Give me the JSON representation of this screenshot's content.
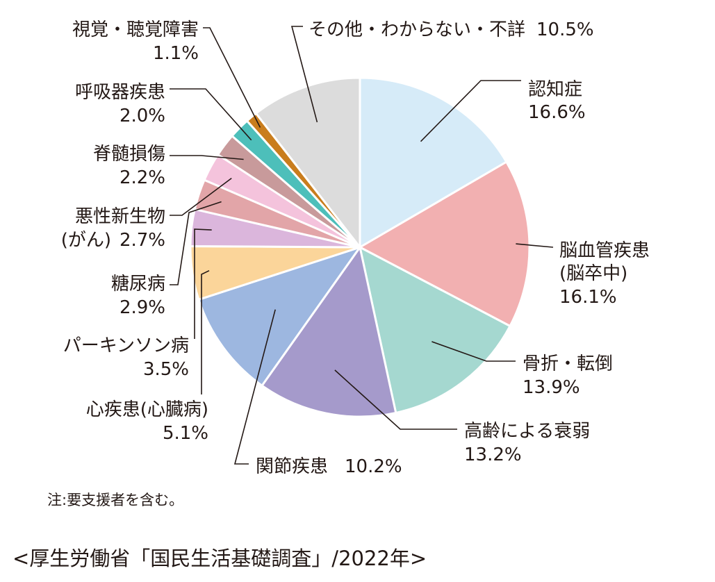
{
  "chart_data": {
    "type": "pie",
    "slices": [
      {
        "label": "認知症",
        "value": 16.6,
        "value_text": "16.6%",
        "color": "#d6ebf8"
      },
      {
        "label": "脳血管疾患",
        "label_line2": "(脳卒中)",
        "value": 16.1,
        "value_text": "16.1%",
        "color": "#f2b0b1"
      },
      {
        "label": "骨折・転倒",
        "value": 13.9,
        "value_text": "13.9%",
        "color": "#a5d8d0"
      },
      {
        "label": "高齢による衰弱",
        "value": 13.2,
        "value_text": "13.2%",
        "color": "#a59acb"
      },
      {
        "label": "関節疾患",
        "value": 10.2,
        "value_text": "10.2%",
        "color": "#9db7e0"
      },
      {
        "label": "心疾患(心臓病)",
        "value": 5.1,
        "value_text": "5.1%",
        "color": "#fbd59a"
      },
      {
        "label": "パーキンソン病",
        "value": 3.5,
        "value_text": "3.5%",
        "color": "#dbb6dc"
      },
      {
        "label": "糖尿病",
        "value": 2.9,
        "value_text": "2.9%",
        "color": "#e2a5a8"
      },
      {
        "label": "悪性新生物",
        "label_line2": "(がん)",
        "value": 2.7,
        "value_text": "2.7%",
        "color": "#f4c3dc"
      },
      {
        "label": "脊髄損傷",
        "value": 2.2,
        "value_text": "2.2%",
        "color": "#c89a9b"
      },
      {
        "label": "呼吸器疾患",
        "value": 2.0,
        "value_text": "2.0%",
        "color": "#4dbfba"
      },
      {
        "label": "視覚・聴覚障害",
        "value": 1.1,
        "value_text": "1.1%",
        "color": "#c97d1d"
      },
      {
        "label": "その他・わからない・不詳",
        "value": 10.5,
        "value_text": "10.5%",
        "color": "#dcdcdc"
      }
    ],
    "start_angle": "12 o'clock",
    "direction": "clockwise",
    "note": "注:要支援者を含む。",
    "source": "<厚生労働省「国民生活基礎調査」/2022年>"
  }
}
